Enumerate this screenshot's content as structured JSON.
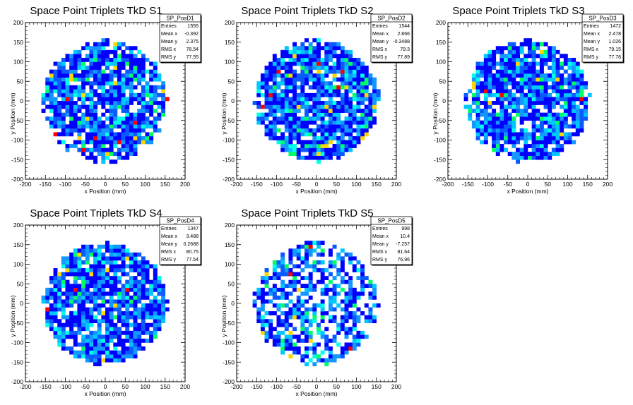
{
  "chart_data": [
    {
      "type": "heatmap",
      "title": "Space Point Triplets TkD S1",
      "xlabel": "x Position (mm)",
      "ylabel": "y Position (mm)",
      "xlim": [
        -200,
        200
      ],
      "ylim": [
        -200,
        200
      ],
      "xticks": [
        "-200",
        "-150",
        "-100",
        "-50",
        "0",
        "50",
        "100",
        "150",
        "200"
      ],
      "yticks": [
        "-200",
        "-150",
        "-100",
        "-50",
        "0",
        "50",
        "100",
        "150",
        "200"
      ],
      "stats": {
        "name": "SP_PosD1",
        "rows": [
          {
            "label": "Entries",
            "value": "1555"
          },
          {
            "label": "Mean x",
            "value": "-0.392"
          },
          {
            "label": "Mean y",
            "value": "2.375"
          },
          {
            "label": "RMS x",
            "value": "78.54"
          },
          {
            "label": "RMS y",
            "value": "77.55"
          }
        ]
      },
      "disk_radius_mm": 155,
      "seed": 11
    },
    {
      "type": "heatmap",
      "title": "Space Point Triplets TkD S2",
      "xlabel": "x Position (mm)",
      "ylabel": "y Position (mm)",
      "xlim": [
        -200,
        200
      ],
      "ylim": [
        -200,
        200
      ],
      "xticks": [
        "-200",
        "-150",
        "-100",
        "-50",
        "0",
        "50",
        "100",
        "150",
        "200"
      ],
      "yticks": [
        "-200",
        "-150",
        "-100",
        "-50",
        "0",
        "50",
        "100",
        "150",
        "200"
      ],
      "stats": {
        "name": "SP_PosD2",
        "rows": [
          {
            "label": "Entries",
            "value": "1544"
          },
          {
            "label": "Mean x",
            "value": "2.866"
          },
          {
            "label": "Mean y",
            "value": "-0.3488"
          },
          {
            "label": "RMS x",
            "value": "79.3"
          },
          {
            "label": "RMS y",
            "value": "77.89"
          }
        ]
      },
      "disk_radius_mm": 155,
      "seed": 23
    },
    {
      "type": "heatmap",
      "title": "Space Point Triplets TkD S3",
      "xlabel": "x Position (mm)",
      "ylabel": "y Position (mm)",
      "xlim": [
        -200,
        200
      ],
      "ylim": [
        -200,
        200
      ],
      "xticks": [
        "-200",
        "-150",
        "-100",
        "-50",
        "0",
        "50",
        "100",
        "150",
        "200"
      ],
      "yticks": [
        "-200",
        "-150",
        "-100",
        "-50",
        "0",
        "50",
        "100",
        "150",
        "200"
      ],
      "stats": {
        "name": "SP_PosD3",
        "rows": [
          {
            "label": "Entries",
            "value": "1472"
          },
          {
            "label": "Mean x",
            "value": "2.478"
          },
          {
            "label": "Mean y",
            "value": "1.026"
          },
          {
            "label": "RMS x",
            "value": "79.15"
          },
          {
            "label": "RMS y",
            "value": "77.78"
          }
        ]
      },
      "disk_radius_mm": 155,
      "seed": 37
    },
    {
      "type": "heatmap",
      "title": "Space Point Triplets TkD S4",
      "xlabel": "x Position (mm)",
      "ylabel": "y Position (mm)",
      "xlim": [
        -200,
        200
      ],
      "ylim": [
        -200,
        200
      ],
      "xticks": [
        "-200",
        "-150",
        "-100",
        "-50",
        "0",
        "50",
        "100",
        "150",
        "200"
      ],
      "yticks": [
        "-200",
        "-150",
        "-100",
        "-50",
        "0",
        "50",
        "100",
        "150",
        "200"
      ],
      "stats": {
        "name": "SP_PosD4",
        "rows": [
          {
            "label": "Entries",
            "value": "1347"
          },
          {
            "label": "Mean x",
            "value": "3.488"
          },
          {
            "label": "Mean y",
            "value": "0.2688"
          },
          {
            "label": "RMS x",
            "value": "80.75"
          },
          {
            "label": "RMS y",
            "value": "77.54"
          }
        ]
      },
      "disk_radius_mm": 155,
      "seed": 53
    },
    {
      "type": "heatmap",
      "title": "Space Point Triplets TkD S5",
      "xlabel": "x Position (mm)",
      "ylabel": "y Position (mm)",
      "xlim": [
        -200,
        200
      ],
      "ylim": [
        -200,
        200
      ],
      "xticks": [
        "-200",
        "-150",
        "-100",
        "-50",
        "0",
        "50",
        "100",
        "150",
        "200"
      ],
      "yticks": [
        "-200",
        "-150",
        "-100",
        "-50",
        "0",
        "50",
        "100",
        "150",
        "200"
      ],
      "stats": {
        "name": "SP_PosD5",
        "rows": [
          {
            "label": "Entries",
            "value": "998"
          },
          {
            "label": "Mean x",
            "value": "10.4"
          },
          {
            "label": "Mean y",
            "value": "-7.257"
          },
          {
            "label": "RMS x",
            "value": "81.64"
          },
          {
            "label": "RMS y",
            "value": "76.96"
          }
        ]
      },
      "disk_radius_mm": 155,
      "seed": 71
    }
  ],
  "palette": [
    "#0000ff",
    "#0a5aff",
    "#1497ff",
    "#00c8ff",
    "#00ffe6",
    "#00ff64",
    "#ffd700",
    "#ff0000"
  ]
}
